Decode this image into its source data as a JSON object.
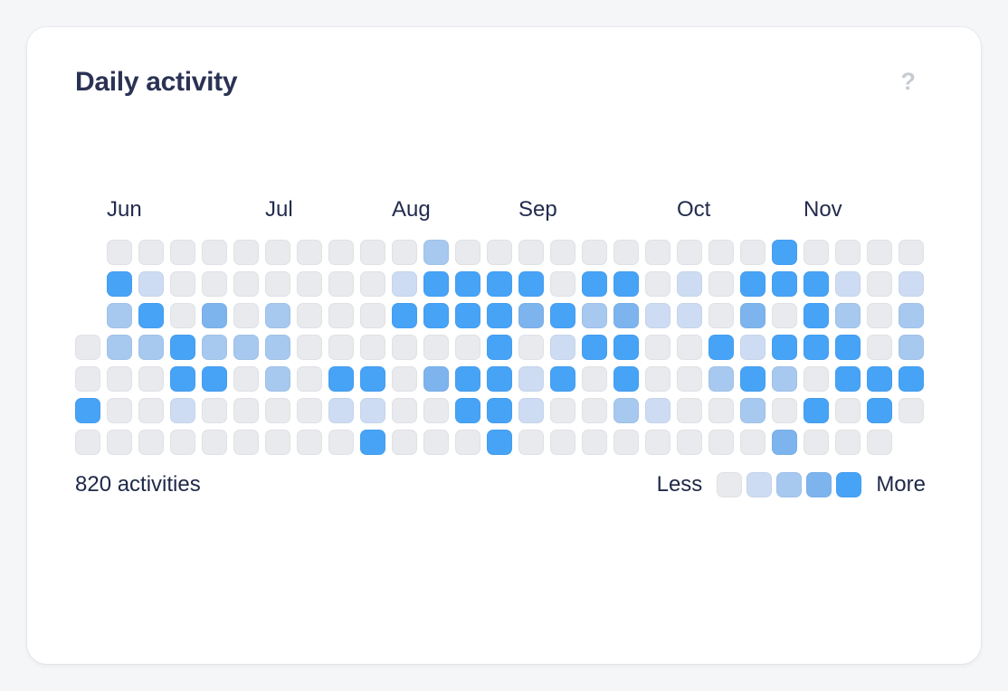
{
  "card": {
    "title": "Daily activity",
    "help_icon": "?",
    "total_label": "820 activities",
    "legend": {
      "less_label": "Less",
      "more_label": "More"
    }
  },
  "chart_data": {
    "type": "heatmap",
    "title": "Daily activity",
    "description": "Calendar activity heatmap; columns are weeks, rows are days of the week; darker blue = more activity",
    "total_activities": 820,
    "weeks": 27,
    "days_per_week": 7,
    "months": [
      {
        "label": "Jun",
        "week_col": 1
      },
      {
        "label": "Jul",
        "week_col": 6
      },
      {
        "label": "Aug",
        "week_col": 10
      },
      {
        "label": "Sep",
        "week_col": 14
      },
      {
        "label": "Oct",
        "week_col": 19
      },
      {
        "label": "Nov",
        "week_col": 23
      }
    ],
    "level_colors": [
      "#e8eaed",
      "#cddcf2",
      "#a7c8ef",
      "#7eb4ed",
      "#47a3f6"
    ],
    "legend_levels": [
      0,
      1,
      2,
      3,
      4
    ],
    "grid_rows": [
      [
        null,
        0,
        0,
        0,
        0,
        0,
        0,
        0,
        0,
        0,
        0,
        2,
        0,
        0,
        0,
        0,
        0,
        0,
        0,
        0,
        0,
        0,
        4,
        0,
        0,
        0,
        0
      ],
      [
        null,
        4,
        1,
        0,
        0,
        0,
        0,
        0,
        0,
        0,
        1,
        4,
        4,
        4,
        4,
        0,
        4,
        4,
        0,
        1,
        0,
        4,
        4,
        4,
        1,
        0,
        1
      ],
      [
        null,
        2,
        4,
        0,
        3,
        0,
        2,
        0,
        0,
        0,
        4,
        4,
        4,
        4,
        3,
        4,
        2,
        3,
        1,
        1,
        0,
        3,
        0,
        4,
        2,
        0,
        2
      ],
      [
        0,
        2,
        2,
        4,
        2,
        2,
        2,
        0,
        0,
        0,
        0,
        0,
        0,
        4,
        0,
        1,
        4,
        4,
        0,
        0,
        4,
        1,
        4,
        4,
        4,
        0,
        2
      ],
      [
        0,
        0,
        0,
        4,
        4,
        0,
        2,
        0,
        4,
        4,
        0,
        3,
        4,
        4,
        1,
        4,
        0,
        4,
        0,
        0,
        2,
        4,
        2,
        0,
        4,
        4,
        4
      ],
      [
        4,
        0,
        0,
        1,
        0,
        0,
        0,
        0,
        1,
        1,
        0,
        0,
        4,
        4,
        1,
        0,
        0,
        2,
        1,
        0,
        0,
        2,
        0,
        4,
        0,
        4,
        0
      ],
      [
        0,
        0,
        0,
        0,
        0,
        0,
        0,
        0,
        0,
        4,
        0,
        0,
        0,
        4,
        0,
        0,
        0,
        0,
        0,
        0,
        0,
        0,
        3,
        0,
        0,
        0,
        null
      ]
    ]
  }
}
